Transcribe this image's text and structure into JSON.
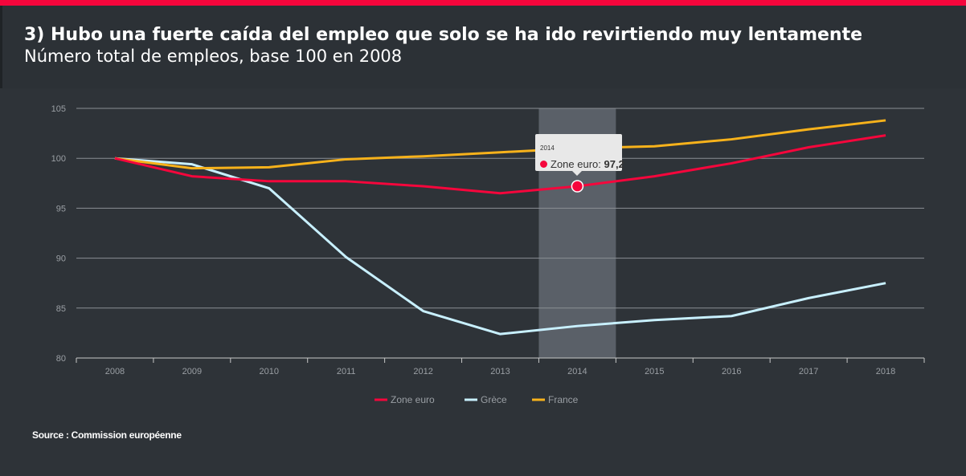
{
  "header": {
    "title": "3) Hubo una fuerte caída del empleo que solo se ha ido revirtiendo muy lentamente",
    "subtitle": "Número total de empleos, base 100 en 2008"
  },
  "source": "Source : Commission européenne",
  "colors": {
    "accent": "#f5063c",
    "zone_euro": "#f5063c",
    "grece": "#c8f0ff",
    "france": "#f7b21b"
  },
  "tooltip": {
    "year": "2014",
    "series": "Zone euro: ",
    "value": "97,2"
  },
  "chart_data": {
    "type": "line",
    "title": "",
    "xlabel": "",
    "ylabel": "",
    "categories": [
      "2008",
      "2009",
      "2010",
      "2011",
      "2012",
      "2013",
      "2014",
      "2015",
      "2016",
      "2017",
      "2018"
    ],
    "yticks": [
      "80",
      "85",
      "90",
      "95",
      "100",
      "105"
    ],
    "ylim": [
      80,
      105
    ],
    "grid": true,
    "legend": "bottom",
    "highlighted_category": "2014",
    "series": [
      {
        "name": "Zone euro",
        "color": "#f5063c",
        "values": [
          100,
          98.2,
          97.7,
          97.7,
          97.2,
          96.5,
          97.2,
          98.2,
          99.5,
          101.1,
          102.3
        ]
      },
      {
        "name": "Grèce",
        "color": "#c8f0ff",
        "values": [
          100,
          99.4,
          97,
          90.1,
          84.7,
          82.4,
          83.2,
          83.8,
          84.2,
          86.0,
          87.5
        ]
      },
      {
        "name": "France",
        "color": "#f7b21b",
        "values": [
          100,
          99.0,
          99.1,
          99.9,
          100.2,
          100.6,
          101.0,
          101.2,
          101.9,
          102.9,
          103.8
        ]
      }
    ]
  }
}
